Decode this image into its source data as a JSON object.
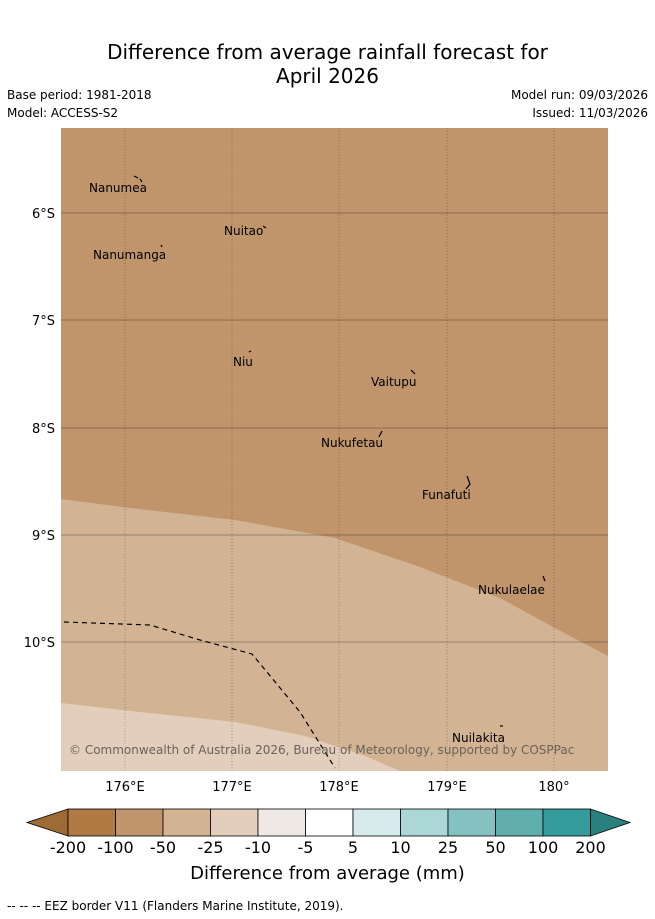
{
  "title_line1": "Difference from average rainfall forecast for",
  "title_line2": "April 2026",
  "base_period": "Base period: 1981-2018",
  "model": "Model: ACCESS-S2",
  "model_run": "Model run: 09/03/2026",
  "issued": "Issued: 11/03/2026",
  "copyright": "© Commonwealth of Australia 2026, Bureau of Meteorology, supported by COSPPac",
  "lat_labels": [
    "6°S",
    "7°S",
    "8°S",
    "9°S",
    "10°S"
  ],
  "lon_labels": [
    "176°E",
    "177°E",
    "178°E",
    "179°E",
    "180°"
  ],
  "places": [
    {
      "name": "Nanumea"
    },
    {
      "name": "Nuitao"
    },
    {
      "name": "Nanumanga"
    },
    {
      "name": "Niu"
    },
    {
      "name": "Vaitupu"
    },
    {
      "name": "Nukufetau"
    },
    {
      "name": "Funafuti"
    },
    {
      "name": "Nukulaelae"
    },
    {
      "name": "Nuilakita"
    }
  ],
  "colorbar": {
    "labels": [
      "-200",
      "-100",
      "-50",
      "-25",
      "-10",
      "-5",
      "5",
      "10",
      "25",
      "50",
      "100",
      "200"
    ],
    "colors": [
      "#9e6a35",
      "#b07a45",
      "#c0956b",
      "#d2b393",
      "#e3cebb",
      "#efe9e5",
      "#ffffff",
      "#d5ebeb",
      "#acd7d7",
      "#86c1c1",
      "#5fadad",
      "#349c9c",
      "#2a7f7f"
    ],
    "title": "Difference from average (mm)"
  },
  "legend_note": "--  --  -- EEZ border V11 (Flanders Marine Institute, 2019)."
}
